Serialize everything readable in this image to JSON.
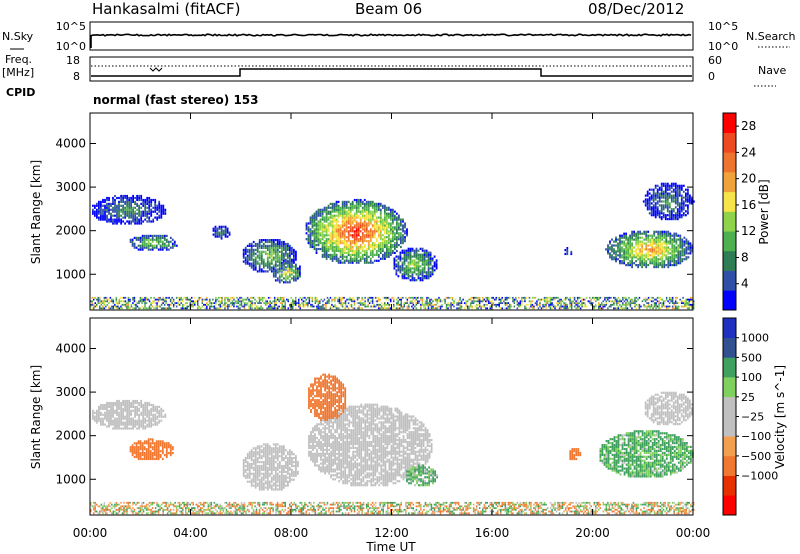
{
  "header": {
    "station": "Hankasalmi (fitACF)",
    "beam": "Beam 06",
    "date": "08/Dec/2012"
  },
  "top_panels": {
    "nsky_label": "N.Sky",
    "nsearch_label": "N.Search",
    "nsky_ticks": [
      "10^5",
      "10^0"
    ],
    "nsearch_ticks": [
      "10^5",
      "10^0"
    ],
    "freq_label_1": "Freq.",
    "freq_label_2": "[MHz]",
    "freq_ticks": [
      "18",
      "8"
    ],
    "nave_label": "Nave",
    "nave_ticks": [
      "60",
      "0"
    ],
    "cpid_label": "CPID",
    "cpid_value": "normal (fast stereo) 153"
  },
  "colors": {
    "power_scale": [
      "#0000ff",
      "#3050a8",
      "#2f7d55",
      "#4fb050",
      "#8ed34a",
      "#f7e34a",
      "#f0a33c",
      "#ee7530",
      "#ee4a22",
      "#ff0000"
    ],
    "velocity_scale": [
      "#ff0000",
      "#e63000",
      "#f07830",
      "#f2a050",
      "#c0c0c0",
      "#c0c0c0",
      "#80d060",
      "#40a060",
      "#305090",
      "#2030c0"
    ],
    "ground_scatter": "#c0c0c0"
  },
  "chart_data": [
    {
      "type": "heatmap",
      "title": "",
      "xlabel": "Time UT",
      "ylabel": "Slant Range [km]",
      "x_ticks": [
        "00:00",
        "04:00",
        "08:00",
        "12:00",
        "16:00",
        "20:00",
        "00:00"
      ],
      "xlim_hours": [
        0,
        24
      ],
      "y_ticks": [
        "1000",
        "2000",
        "3000",
        "4000"
      ],
      "ylim": [
        180,
        4700
      ],
      "colorbar": {
        "label": "Power [dB]",
        "ticks": [
          "4",
          "8",
          "12",
          "16",
          "20",
          "24",
          "28"
        ],
        "range": [
          0,
          30
        ]
      },
      "echo_regions": [
        {
          "t0": 0.0,
          "t1": 3.0,
          "r0": 2100,
          "r1": 2800,
          "peak": 8
        },
        {
          "t0": 1.5,
          "t1": 3.5,
          "r0": 1500,
          "r1": 1900,
          "peak": 14
        },
        {
          "t0": 4.8,
          "t1": 5.6,
          "r0": 1800,
          "r1": 2100,
          "peak": 9
        },
        {
          "t0": 6.0,
          "t1": 8.2,
          "r0": 1000,
          "r1": 1800,
          "peak": 14
        },
        {
          "t0": 7.2,
          "t1": 8.4,
          "r0": 750,
          "r1": 1300,
          "peak": 18
        },
        {
          "t0": 8.5,
          "t1": 12.6,
          "r0": 1200,
          "r1": 2700,
          "peak": 28
        },
        {
          "t0": 12.0,
          "t1": 13.8,
          "r0": 800,
          "r1": 1600,
          "peak": 14
        },
        {
          "t0": 18.8,
          "t1": 19.2,
          "r0": 1400,
          "r1": 1600,
          "peak": 8
        },
        {
          "t0": 20.5,
          "t1": 24.0,
          "r0": 1100,
          "r1": 2000,
          "peak": 22
        },
        {
          "t0": 22.0,
          "t1": 24.0,
          "r0": 2200,
          "r1": 3100,
          "peak": 8
        }
      ]
    },
    {
      "type": "heatmap",
      "title": "",
      "xlabel": "Time UT",
      "ylabel": "Slant Range [km]",
      "x_ticks": [
        "00:00",
        "04:00",
        "08:00",
        "12:00",
        "16:00",
        "20:00",
        "00:00"
      ],
      "xlim_hours": [
        0,
        24
      ],
      "y_ticks": [
        "1000",
        "2000",
        "3000",
        "4000"
      ],
      "ylim": [
        180,
        4700
      ],
      "colorbar": {
        "label": "Velocity [m s^-1]",
        "ticks": [
          "1000",
          "500",
          "100",
          "25",
          "−25",
          "−100",
          "−500",
          "−1000"
        ],
        "range": [
          -1000,
          1000
        ]
      },
      "echo_regions": [
        {
          "t0": 0.0,
          "t1": 3.0,
          "r0": 2100,
          "r1": 2800,
          "vel": 0,
          "ground_scatter": true
        },
        {
          "t0": 1.5,
          "t1": 3.3,
          "r0": 1400,
          "r1": 1900,
          "vel": -250
        },
        {
          "t0": 6.0,
          "t1": 8.3,
          "r0": 700,
          "r1": 1800,
          "vel": 0,
          "ground_scatter": true
        },
        {
          "t0": 8.6,
          "t1": 13.6,
          "r0": 800,
          "r1": 2700,
          "vel": 0,
          "ground_scatter": true
        },
        {
          "t0": 8.6,
          "t1": 10.2,
          "r0": 2300,
          "r1": 3400,
          "vel": -300
        },
        {
          "t0": 12.5,
          "t1": 13.8,
          "r0": 800,
          "r1": 1300,
          "vel": 120
        },
        {
          "t0": 19.0,
          "t1": 19.5,
          "r0": 1400,
          "r1": 1700,
          "vel": -300
        },
        {
          "t0": 20.2,
          "t1": 24.0,
          "r0": 1000,
          "r1": 2100,
          "vel": 150
        },
        {
          "t0": 22.0,
          "t1": 24.0,
          "r0": 2200,
          "r1": 3000,
          "vel": 0,
          "ground_scatter": true
        }
      ]
    }
  ]
}
